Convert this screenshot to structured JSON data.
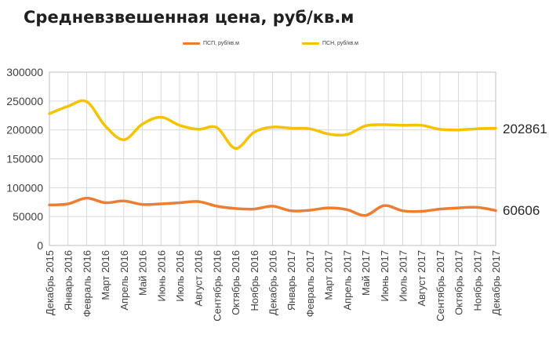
{
  "title": "Средневзвешенная цена, руб/кв.м",
  "chart_data": {
    "type": "line",
    "title": "Средневзвешенная цена, руб/кв.м",
    "xlabel": "",
    "ylabel": "",
    "ylim": [
      0,
      300000
    ],
    "yticks": [
      0,
      50000,
      100000,
      150000,
      200000,
      250000,
      300000
    ],
    "grid": true,
    "legend_position": "top",
    "categories": [
      "Декабрь 2015",
      "Январь 2016",
      "Февраль 2016",
      "Март 2016",
      "Апрель 2016",
      "Май 2016",
      "Июнь 2016",
      "Июль 2016",
      "Август 2016",
      "Сентябрь 2016",
      "Октябрь 2016",
      "Ноябрь 2016",
      "Декабрь 2016",
      "Январь 2017",
      "Февраль 2017",
      "Март 2017",
      "Апрель 2017",
      "Май 2017",
      "Июнь 2017",
      "Июль 2017",
      "Август 2017",
      "Сентябрь 2017",
      "Октябрь 2017",
      "Ноябрь 2017",
      "Декабрь 2017"
    ],
    "series": [
      {
        "name": "ПСП, руб/кв.м",
        "color": "#ed7d31",
        "values": [
          70000,
          72000,
          82000,
          74000,
          77000,
          71000,
          72000,
          74000,
          76000,
          68000,
          64000,
          63000,
          68000,
          60000,
          61000,
          65000,
          62000,
          52000,
          69000,
          60000,
          59000,
          63000,
          65000,
          66000,
          60606
        ],
        "end_label": "60606"
      },
      {
        "name": "ПСН, руб/кв.м",
        "color": "#f5c200",
        "values": [
          228000,
          241000,
          249000,
          207000,
          183000,
          210000,
          222000,
          208000,
          201000,
          204000,
          168000,
          196000,
          205000,
          203000,
          202000,
          193000,
          192000,
          207000,
          209000,
          208000,
          208000,
          201000,
          200000,
          202000,
          202861
        ],
        "end_label": "202861"
      }
    ]
  }
}
